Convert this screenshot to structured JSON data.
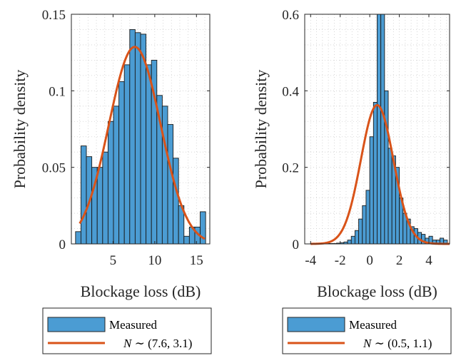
{
  "chart_data": [
    {
      "type": "bar",
      "xlabel": "Blockage loss (dB)",
      "ylabel": "Probability density",
      "xlim": [
        0,
        16.6
      ],
      "ylim": [
        0,
        0.15
      ],
      "xticks": [
        5,
        10,
        15
      ],
      "xtick_labels": [
        "5",
        "10",
        "15"
      ],
      "yticks": [
        0,
        0.05,
        0.1,
        0.15
      ],
      "ytick_labels": [
        "0",
        "0.05",
        "0.1",
        "0.15"
      ],
      "grid": true,
      "bin_edges": [
        0.5,
        1.15,
        1.8,
        2.45,
        3.1,
        3.75,
        4.4,
        5.05,
        5.7,
        6.35,
        7.0,
        7.65,
        8.3,
        8.95,
        9.6,
        10.25,
        10.9,
        11.55,
        12.2,
        12.85,
        13.5,
        14.15,
        14.8,
        15.45,
        16.1
      ],
      "values": [
        0.008,
        0.064,
        0.057,
        0.05,
        0.05,
        0.06,
        0.08,
        0.09,
        0.106,
        0.117,
        0.14,
        0.138,
        0.137,
        0.117,
        0.12,
        0.097,
        0.09,
        0.078,
        0.056,
        0.025,
        0.005,
        0.011,
        0.011,
        0.021
      ],
      "fit": {
        "mu": 7.6,
        "sigma": 3.1,
        "x_range": [
          1.0,
          16.0
        ]
      },
      "legend": {
        "placement": "below",
        "entries": [
          {
            "label": "Measured",
            "kind": "bar"
          },
          {
            "label_prefix": "N",
            "label_rest": " ∼ (7.6, 3.1)",
            "kind": "line"
          }
        ]
      },
      "colors": {
        "bar": "#4b9cd3",
        "fit": "#d95319"
      }
    },
    {
      "type": "bar",
      "xlabel": "Blockage loss (dB)",
      "ylabel": "Probability density",
      "xlim": [
        -4.4,
        5.4
      ],
      "ylim": [
        0,
        0.6
      ],
      "xticks": [
        -4,
        -2,
        0,
        2,
        4
      ],
      "xtick_labels": [
        "-4",
        "-2",
        "0",
        "2",
        "4"
      ],
      "yticks": [
        0,
        0.2,
        0.4,
        0.6
      ],
      "ytick_labels": [
        "0",
        "0.2",
        "0.4",
        "0.6"
      ],
      "grid": true,
      "bin_edges": [
        -4.0,
        -3.75,
        -3.5,
        -3.25,
        -3.0,
        -2.75,
        -2.5,
        -2.25,
        -2.0,
        -1.75,
        -1.5,
        -1.25,
        -1.0,
        -0.75,
        -0.5,
        -0.25,
        0.0,
        0.25,
        0.5,
        0.75,
        1.0,
        1.25,
        1.5,
        1.75,
        2.0,
        2.25,
        2.5,
        2.75,
        3.0,
        3.25,
        3.5,
        3.75,
        4.0,
        4.25,
        4.5,
        4.75,
        5.0,
        5.25
      ],
      "values": [
        0.001,
        0.001,
        0.001,
        0.001,
        0.001,
        0.001,
        0.001,
        0.002,
        0.003,
        0.005,
        0.01,
        0.02,
        0.035,
        0.065,
        0.1,
        0.14,
        0.28,
        0.37,
        0.6,
        0.6,
        0.4,
        0.25,
        0.23,
        0.2,
        0.12,
        0.08,
        0.065,
        0.045,
        0.04,
        0.03,
        0.025,
        0.015,
        0.02,
        0.01,
        0.01,
        0.015,
        0.01
      ],
      "fit": {
        "mu": 0.5,
        "sigma": 1.1,
        "x_range": [
          -4.0,
          5.4
        ]
      },
      "legend": {
        "placement": "below",
        "entries": [
          {
            "label": "Measured",
            "kind": "bar"
          },
          {
            "label_prefix": "N",
            "label_rest": " ∼ (0.5, 1.1)",
            "kind": "line"
          }
        ]
      },
      "colors": {
        "bar": "#4b9cd3",
        "fit": "#d95319"
      }
    }
  ]
}
